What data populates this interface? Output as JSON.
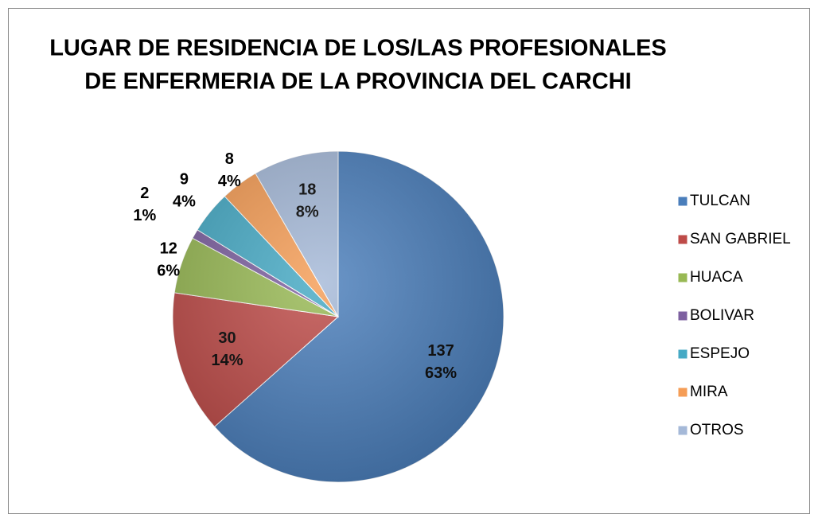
{
  "chart_data": {
    "type": "pie",
    "title": [
      "LUGAR DE RESIDENCIA DE LOS/LAS PROFESIONALES",
      "DE ENFERMERIA DE LA PROVINCIA DEL CARCHI"
    ],
    "categories": [
      "TULCAN",
      "SAN GABRIEL",
      "HUACA",
      "BOLIVAR",
      "ESPEJO",
      "MIRA",
      "OTROS"
    ],
    "values": [
      137,
      30,
      12,
      2,
      9,
      8,
      18
    ],
    "percent_labels": [
      "63%",
      "14%",
      "6%",
      "1%",
      "4%",
      "4%",
      "8%"
    ],
    "colors": [
      "#4a7ebb",
      "#be4b48",
      "#98b954",
      "#7d60a0",
      "#46aac5",
      "#f59d56",
      "#a5b9d8"
    ],
    "legend": "right"
  }
}
